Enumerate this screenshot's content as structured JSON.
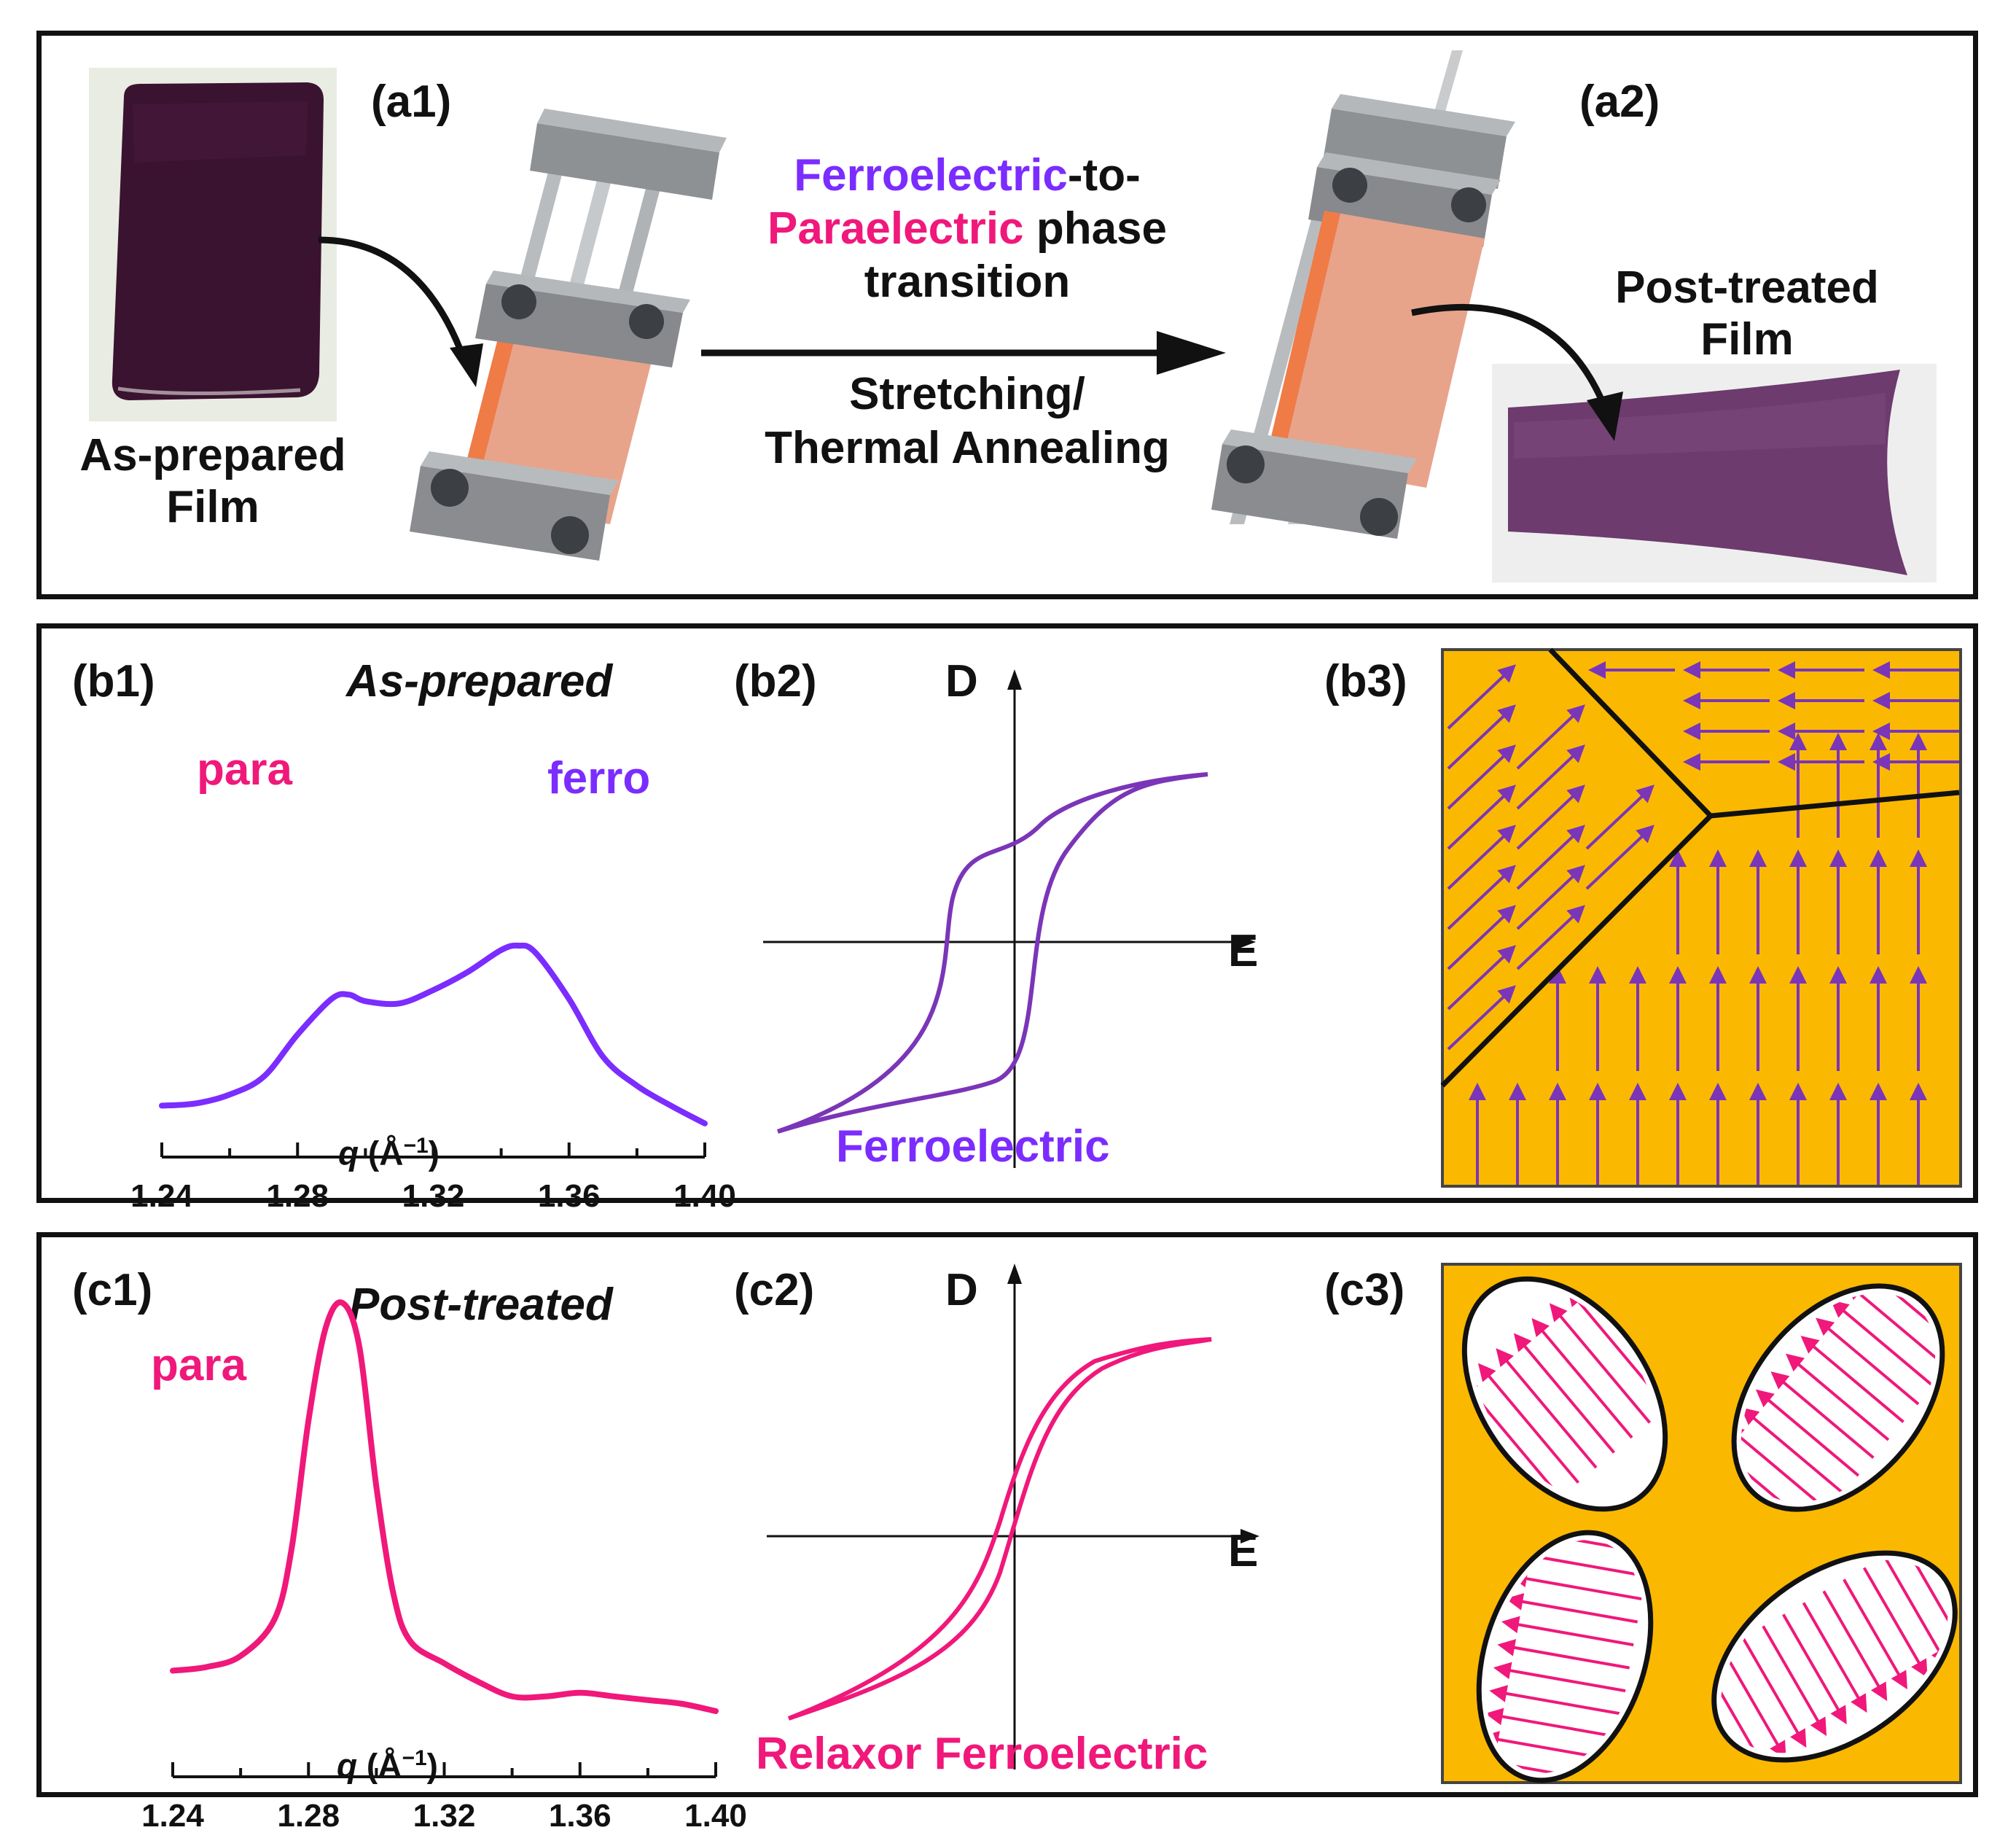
{
  "panel_a": {
    "label_a1": "(a1)",
    "label_a2": "(a2)",
    "as_prepared_line1": "As-prepared",
    "as_prepared_line2": "Film",
    "post_treated_line1": "Post-treated",
    "post_treated_line2": "Film",
    "transition_ferro": "Ferroelectric",
    "transition_to": "-to-",
    "transition_para": "Paraelectric",
    "transition_phase": " phase",
    "transition_line3": "transition",
    "process_line1": "Stretching/",
    "process_line2": "Thermal Annealing"
  },
  "panel_b": {
    "label_b1": "(b1)",
    "label_b2": "(b2)",
    "label_b3": "(b3)",
    "condition": "As-prepared",
    "peak_para": "para",
    "peak_ferro": "ferro",
    "axis_d": "D",
    "axis_e": "E",
    "loop_caption": "Ferroelectric"
  },
  "panel_c": {
    "label_c1": "(c1)",
    "label_c2": "(c2)",
    "label_c3": "(c3)",
    "condition": "Post-treated",
    "peak_para": "para",
    "axis_d": "D",
    "axis_e": "E",
    "loop_caption": "Relaxor Ferroelectric"
  },
  "xaxis": {
    "label_q": "q",
    "label_unit": " (Å",
    "label_exp": "−1",
    "label_close": ")",
    "ticks": [
      "1.24",
      "1.28",
      "1.32",
      "1.36",
      "1.40"
    ]
  },
  "colors": {
    "ferro": "#7b2cff",
    "para": "#f0187a",
    "loop_ferro": "#7a35b8",
    "domain_bg": "#fbb800"
  },
  "chart_data": [
    {
      "type": "line",
      "panel": "b1",
      "title": "As-prepared",
      "xlabel": "q (Å−1)",
      "xlim": [
        1.24,
        1.4
      ],
      "xticks": [
        1.24,
        1.28,
        1.32,
        1.36,
        1.4
      ],
      "series": [
        {
          "name": "As-prepared",
          "x": [
            1.24,
            1.25,
            1.26,
            1.27,
            1.28,
            1.29,
            1.295,
            1.3,
            1.31,
            1.32,
            1.33,
            1.34,
            1.345,
            1.35,
            1.36,
            1.37,
            1.38,
            1.39,
            1.4
          ],
          "y": [
            0.1,
            0.11,
            0.15,
            0.23,
            0.42,
            0.58,
            0.6,
            0.57,
            0.56,
            0.62,
            0.7,
            0.8,
            0.82,
            0.79,
            0.58,
            0.32,
            0.19,
            0.1,
            0.02
          ]
        }
      ],
      "annotations": [
        "para",
        "ferro"
      ]
    },
    {
      "type": "line",
      "panel": "c1",
      "title": "Post-treated",
      "xlabel": "q (Å−1)",
      "xlim": [
        1.24,
        1.4
      ],
      "xticks": [
        1.24,
        1.28,
        1.32,
        1.36,
        1.4
      ],
      "series": [
        {
          "name": "Post-treated",
          "x": [
            1.24,
            1.25,
            1.26,
            1.27,
            1.275,
            1.28,
            1.285,
            1.29,
            1.295,
            1.3,
            1.305,
            1.31,
            1.32,
            1.33,
            1.34,
            1.35,
            1.36,
            1.37,
            1.38,
            1.39,
            1.4
          ],
          "y": [
            0.12,
            0.13,
            0.16,
            0.26,
            0.45,
            0.8,
            1.05,
            1.12,
            1.0,
            0.62,
            0.33,
            0.2,
            0.14,
            0.09,
            0.05,
            0.05,
            0.06,
            0.05,
            0.04,
            0.03,
            0.01
          ]
        }
      ],
      "annotations": [
        "para"
      ]
    }
  ]
}
